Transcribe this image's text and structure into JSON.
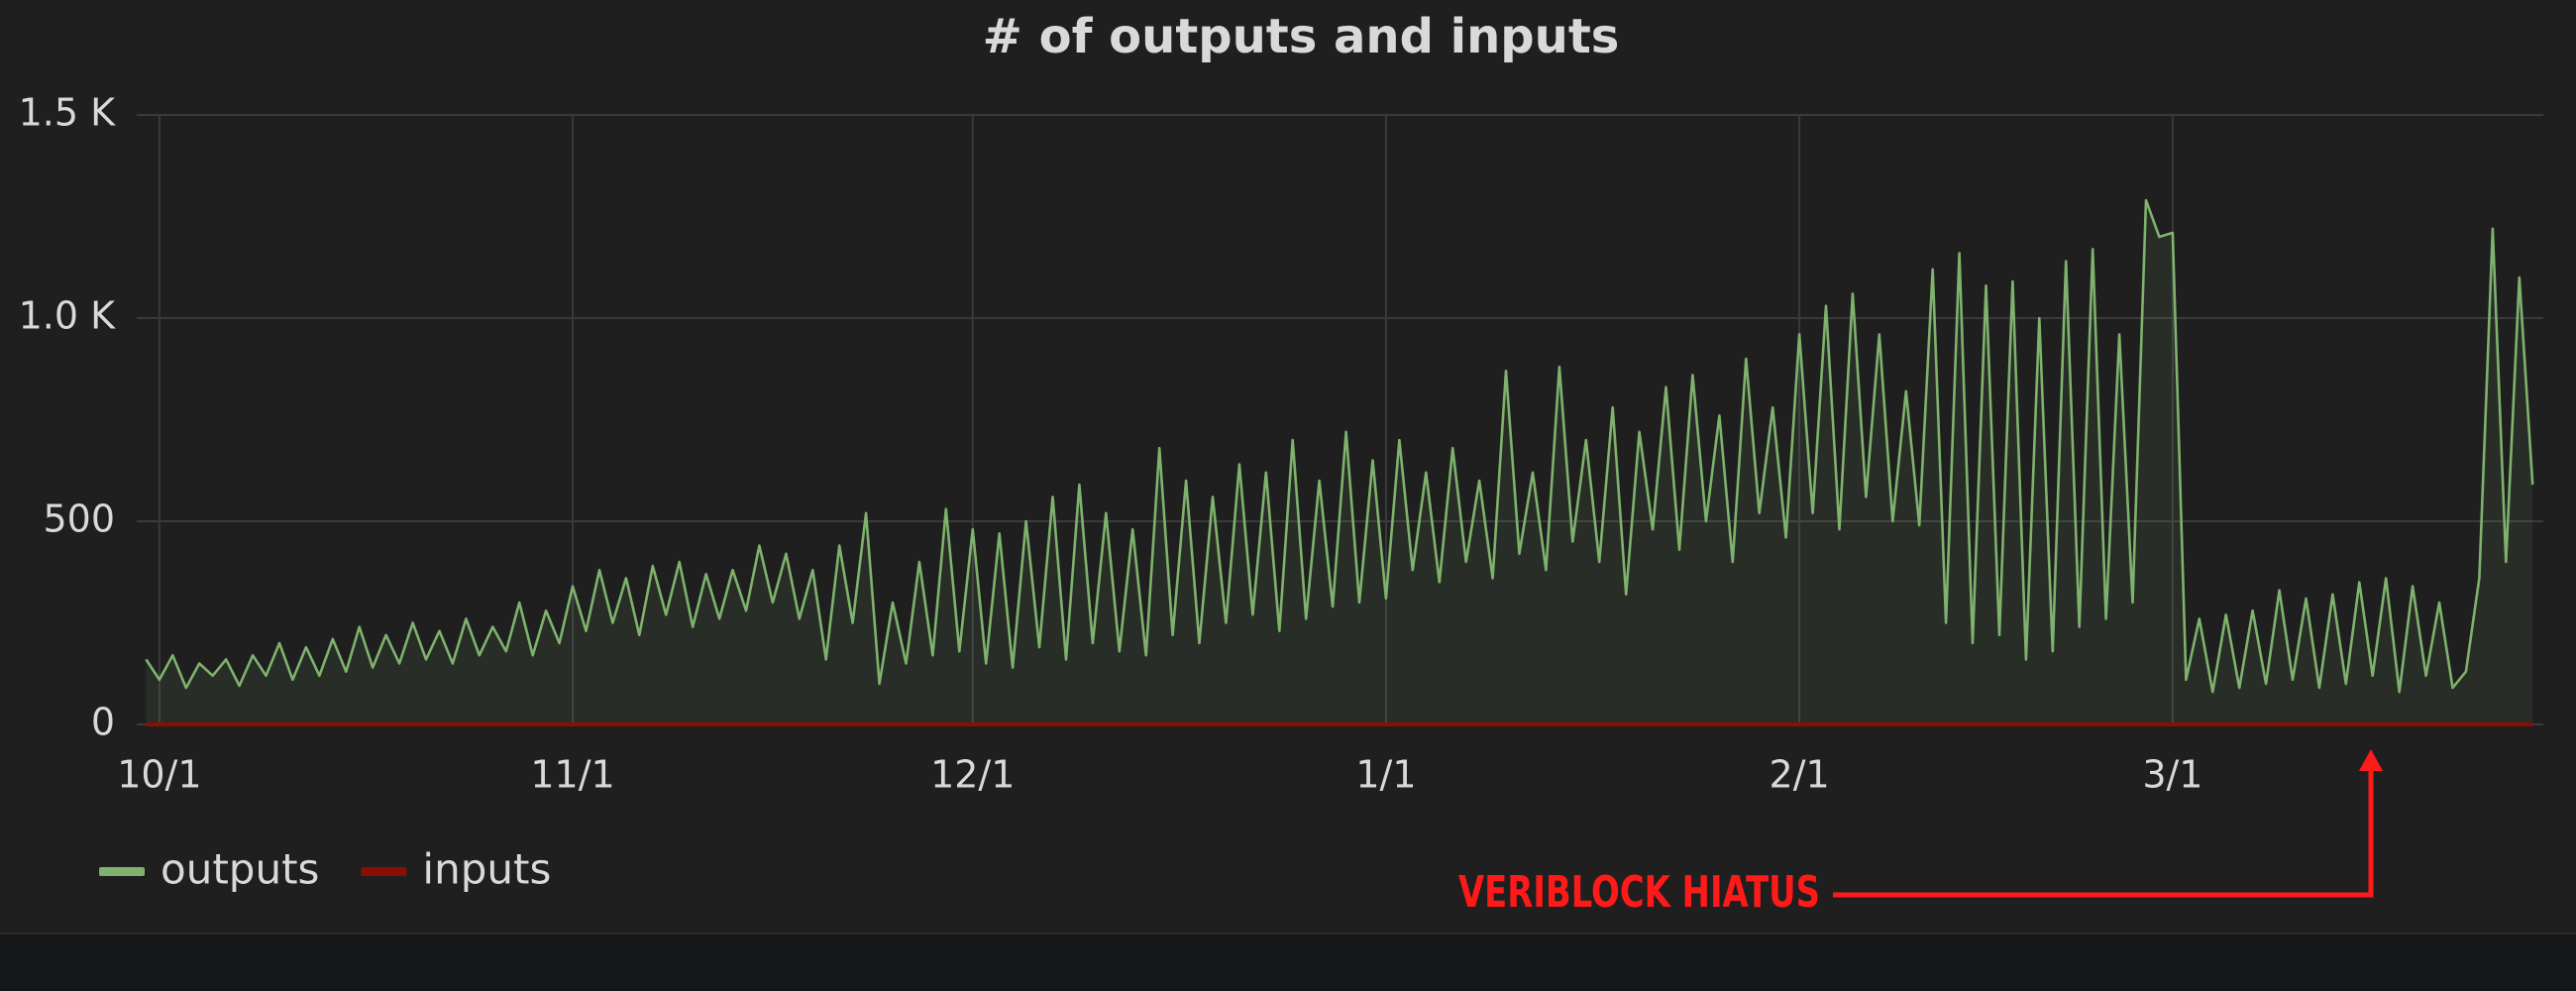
{
  "chart_data": {
    "type": "line",
    "title": "# of outputs and inputs",
    "x": [
      -1,
      0,
      1,
      2,
      3,
      4,
      5,
      6,
      7,
      8,
      9,
      10,
      11,
      12,
      13,
      14,
      15,
      16,
      17,
      18,
      19,
      20,
      21,
      22,
      23,
      24,
      25,
      26,
      27,
      28,
      29,
      30,
      31,
      32,
      33,
      34,
      35,
      36,
      37,
      38,
      39,
      40,
      41,
      42,
      43,
      44,
      45,
      46,
      47,
      48,
      49,
      50,
      51,
      52,
      53,
      54,
      55,
      56,
      57,
      58,
      59,
      60,
      61,
      62,
      63,
      64,
      65,
      66,
      67,
      68,
      69,
      70,
      71,
      72,
      73,
      74,
      75,
      76,
      77,
      78,
      79,
      80,
      81,
      82,
      83,
      84,
      85,
      86,
      87,
      88,
      89,
      90,
      91,
      92,
      93,
      94,
      95,
      96,
      97,
      98,
      99,
      100,
      101,
      102,
      103,
      104,
      105,
      106,
      107,
      108,
      109,
      110,
      111,
      112,
      113,
      114,
      115,
      116,
      117,
      118,
      119,
      120,
      121,
      122,
      123,
      124,
      125,
      126,
      127,
      128,
      129,
      130,
      131,
      132,
      133,
      134,
      135,
      136,
      137,
      138,
      139,
      140,
      141,
      142,
      143,
      144,
      145,
      146,
      147,
      148,
      149,
      150,
      151,
      152,
      153,
      154,
      155,
      156,
      157,
      158,
      159,
      160,
      161,
      162,
      163,
      164,
      165,
      166,
      167,
      168,
      169,
      170,
      171,
      172,
      173,
      174,
      175,
      176,
      177,
      178
    ],
    "series": [
      {
        "name": "outputs",
        "color": "#7eb26d",
        "values": [
          160,
          110,
          170,
          90,
          150,
          120,
          160,
          95,
          170,
          120,
          200,
          110,
          190,
          120,
          210,
          130,
          240,
          140,
          220,
          150,
          250,
          160,
          230,
          150,
          260,
          170,
          240,
          180,
          300,
          170,
          280,
          200,
          340,
          230,
          380,
          250,
          360,
          220,
          390,
          270,
          400,
          240,
          370,
          260,
          380,
          280,
          440,
          300,
          420,
          260,
          380,
          160,
          440,
          250,
          520,
          100,
          300,
          150,
          400,
          170,
          530,
          180,
          480,
          150,
          470,
          140,
          500,
          190,
          560,
          160,
          590,
          200,
          520,
          180,
          480,
          170,
          680,
          220,
          600,
          200,
          560,
          250,
          640,
          270,
          620,
          230,
          700,
          260,
          600,
          290,
          720,
          300,
          650,
          310,
          700,
          380,
          620,
          350,
          680,
          400,
          600,
          360,
          870,
          420,
          620,
          380,
          880,
          450,
          700,
          400,
          780,
          320,
          720,
          480,
          830,
          430,
          860,
          500,
          760,
          400,
          900,
          520,
          780,
          460,
          960,
          520,
          1030,
          480,
          1060,
          560,
          960,
          500,
          820,
          490,
          1120,
          250,
          1160,
          200,
          1080,
          220,
          1090,
          160,
          1000,
          180,
          1140,
          240,
          1170,
          260,
          960,
          300,
          1290,
          1200,
          1210,
          110,
          260,
          80,
          270,
          90,
          280,
          100,
          330,
          110,
          310,
          90,
          320,
          100,
          350,
          120,
          360,
          80,
          340,
          120,
          300,
          90,
          130,
          360,
          1220,
          400,
          1100,
          590
        ]
      },
      {
        "name": "inputs",
        "color": "#890f02",
        "values": [
          0,
          0,
          0,
          0,
          0,
          0,
          0,
          0,
          0,
          0,
          0,
          0,
          0,
          0,
          0,
          0,
          0,
          0,
          0,
          0,
          0,
          0,
          0,
          0,
          0,
          0,
          0,
          0,
          0,
          0,
          0,
          0,
          0,
          0,
          0,
          0,
          0,
          0,
          0,
          0,
          0,
          0,
          0,
          0,
          0,
          0,
          0,
          0,
          0,
          0,
          0,
          0,
          0,
          0,
          0,
          0,
          0,
          0,
          0,
          0,
          0,
          0,
          0,
          0,
          0,
          0,
          0,
          0,
          0,
          0,
          0,
          0,
          0,
          0,
          0,
          0,
          0,
          0,
          0,
          0,
          0,
          0,
          0,
          0,
          0,
          0,
          0,
          0,
          0,
          0,
          0,
          0,
          0,
          0,
          0,
          0,
          0,
          0,
          0,
          0,
          0,
          0,
          0,
          0,
          0,
          0,
          0,
          0,
          0,
          0,
          0,
          0,
          0,
          0,
          0,
          0,
          0,
          0,
          0,
          0,
          0,
          0,
          0,
          0,
          0,
          0,
          0,
          0,
          0,
          0,
          0,
          0,
          0,
          0,
          0,
          0,
          0,
          0,
          0,
          0,
          0,
          0,
          0,
          0,
          0,
          0,
          0,
          0,
          0,
          0,
          0,
          0,
          0,
          0,
          0,
          0,
          0,
          0,
          0,
          0,
          0,
          0,
          0,
          0,
          0,
          0,
          0,
          0,
          0,
          0,
          0,
          0,
          0,
          0,
          0,
          0,
          0,
          0,
          0,
          0
        ]
      }
    ],
    "xlim": [
      -1.7,
      178.8
    ],
    "xticks": [
      {
        "value": 0,
        "label": "10/1"
      },
      {
        "value": 31,
        "label": "11/1"
      },
      {
        "value": 61,
        "label": "12/1"
      },
      {
        "value": 92,
        "label": "1/1"
      },
      {
        "value": 123,
        "label": "2/1"
      },
      {
        "value": 151,
        "label": "3/1"
      }
    ],
    "ylim": [
      0,
      1500
    ],
    "yticks": [
      0,
      500,
      {
        "value": 1000,
        "label": "1.0 K"
      },
      {
        "value": 1500,
        "label": "1.5 K"
      }
    ],
    "grid": true,
    "legend": "bottom-left",
    "annotation": "VERIBLOCK HIATUS"
  }
}
